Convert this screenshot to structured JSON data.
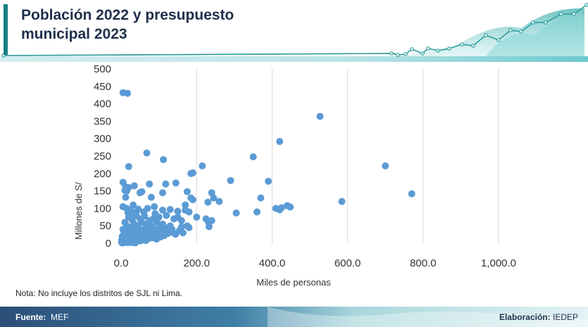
{
  "header": {
    "title_line1": "Población 2022 y presupuesto",
    "title_line2": "municipal 2023"
  },
  "note": "Nota: No incluye los distritos de SJL ni Lima.",
  "footer": {
    "source_label": "Fuente:",
    "source_value": "MEF",
    "elaboration_label": "Elaboración:",
    "elaboration_value": "IEDEP"
  },
  "colors": {
    "accent": "#1a7f86",
    "points": "#5b9bd5",
    "title": "#1f2f4b"
  },
  "chart_data": {
    "type": "scatter",
    "xlabel": "Miles de personas",
    "ylabel": "Millones de S/",
    "xlim": [
      0,
      1000
    ],
    "ylim": [
      0,
      500
    ],
    "xticks": [
      0,
      200,
      400,
      600,
      800,
      1000
    ],
    "xtick_labels": [
      "0.0",
      "200.0",
      "400.0",
      "600.0",
      "800.0",
      "1,000.0"
    ],
    "yticks": [
      0,
      50,
      100,
      150,
      200,
      250,
      300,
      350,
      400,
      450,
      500
    ],
    "ytick_labels": [
      "0",
      "50",
      "100",
      "150",
      "200",
      "250",
      "300",
      "350",
      "400",
      "450",
      "500"
    ],
    "grid": "vertical",
    "points": [
      [
        5,
        432
      ],
      [
        17,
        430
      ],
      [
        527,
        364
      ],
      [
        420,
        292
      ],
      [
        350,
        248
      ],
      [
        68,
        259
      ],
      [
        112,
        240
      ],
      [
        700,
        222
      ],
      [
        20,
        220
      ],
      [
        215,
        222
      ],
      [
        185,
        200
      ],
      [
        190,
        202
      ],
      [
        5,
        175
      ],
      [
        12,
        162
      ],
      [
        20,
        160
      ],
      [
        10,
        152
      ],
      [
        15,
        150
      ],
      [
        35,
        165
      ],
      [
        75,
        170
      ],
      [
        118,
        170
      ],
      [
        145,
        173
      ],
      [
        290,
        180
      ],
      [
        390,
        178
      ],
      [
        770,
        142
      ],
      [
        50,
        145
      ],
      [
        55,
        148
      ],
      [
        110,
        145
      ],
      [
        175,
        148
      ],
      [
        240,
        145
      ],
      [
        370,
        130
      ],
      [
        245,
        130
      ],
      [
        12,
        132
      ],
      [
        80,
        132
      ],
      [
        185,
        130
      ],
      [
        190,
        125
      ],
      [
        170,
        110
      ],
      [
        230,
        118
      ],
      [
        260,
        120
      ],
      [
        585,
        120
      ],
      [
        440,
        108
      ],
      [
        448,
        104
      ],
      [
        410,
        100
      ],
      [
        420,
        96
      ],
      [
        425,
        102
      ],
      [
        360,
        90
      ],
      [
        305,
        87
      ],
      [
        5,
        105
      ],
      [
        15,
        100
      ],
      [
        25,
        95
      ],
      [
        32,
        110
      ],
      [
        45,
        98
      ],
      [
        70,
        100
      ],
      [
        88,
        105
      ],
      [
        110,
        95
      ],
      [
        130,
        97
      ],
      [
        150,
        92
      ],
      [
        170,
        95
      ],
      [
        180,
        90
      ],
      [
        200,
        75
      ],
      [
        225,
        70
      ],
      [
        232,
        60
      ],
      [
        240,
        65
      ],
      [
        233,
        48
      ],
      [
        175,
        50
      ],
      [
        180,
        45
      ],
      [
        160,
        47
      ],
      [
        60,
        90
      ],
      [
        90,
        85
      ],
      [
        120,
        80
      ],
      [
        140,
        70
      ],
      [
        75,
        65
      ],
      [
        85,
        70
      ],
      [
        95,
        60
      ],
      [
        100,
        75
      ],
      [
        110,
        55
      ],
      [
        130,
        50
      ],
      [
        150,
        75
      ],
      [
        160,
        65
      ],
      [
        40,
        80
      ],
      [
        50,
        70
      ],
      [
        20,
        75
      ],
      [
        30,
        65
      ],
      [
        55,
        60
      ],
      [
        65,
        55
      ],
      [
        70,
        45
      ],
      [
        80,
        50
      ],
      [
        90,
        40
      ],
      [
        100,
        42
      ],
      [
        115,
        38
      ],
      [
        125,
        45
      ],
      [
        135,
        40
      ],
      [
        45,
        50
      ],
      [
        35,
        55
      ],
      [
        25,
        45
      ],
      [
        15,
        50
      ],
      [
        10,
        60
      ],
      [
        5,
        40
      ],
      [
        8,
        30
      ],
      [
        12,
        25
      ],
      [
        18,
        35
      ],
      [
        22,
        28
      ],
      [
        28,
        38
      ],
      [
        33,
        30
      ],
      [
        38,
        42
      ],
      [
        42,
        25
      ],
      [
        48,
        35
      ],
      [
        52,
        28
      ],
      [
        58,
        38
      ],
      [
        62,
        32
      ],
      [
        68,
        28
      ],
      [
        72,
        35
      ],
      [
        78,
        30
      ],
      [
        82,
        38
      ],
      [
        88,
        28
      ],
      [
        92,
        32
      ],
      [
        98,
        25
      ],
      [
        105,
        30
      ],
      [
        3,
        20
      ],
      [
        6,
        15
      ],
      [
        9,
        22
      ],
      [
        14,
        18
      ],
      [
        19,
        12
      ],
      [
        24,
        20
      ],
      [
        29,
        15
      ],
      [
        34,
        22
      ],
      [
        39,
        18
      ],
      [
        44,
        14
      ],
      [
        49,
        20
      ],
      [
        54,
        16
      ],
      [
        59,
        22
      ],
      [
        64,
        18
      ],
      [
        2,
        10
      ],
      [
        4,
        6
      ],
      [
        7,
        12
      ],
      [
        11,
        8
      ],
      [
        16,
        5
      ],
      [
        21,
        10
      ],
      [
        26,
        7
      ],
      [
        31,
        12
      ],
      [
        36,
        8
      ],
      [
        41,
        5
      ],
      [
        46,
        10
      ],
      [
        51,
        7
      ],
      [
        56,
        12
      ],
      [
        1,
        3
      ],
      [
        3,
        1
      ],
      [
        5,
        4
      ],
      [
        8,
        2
      ],
      [
        13,
        3
      ],
      [
        18,
        2
      ],
      [
        23,
        4
      ],
      [
        27,
        2
      ],
      [
        32,
        3
      ],
      [
        37,
        1
      ],
      [
        60,
        10
      ],
      [
        66,
        8
      ],
      [
        74,
        14
      ],
      [
        84,
        16
      ],
      [
        94,
        12
      ],
      [
        104,
        18
      ],
      [
        114,
        22
      ],
      [
        124,
        28
      ],
      [
        134,
        32
      ],
      [
        144,
        26
      ],
      [
        154,
        36
      ],
      [
        164,
        30
      ],
      [
        30,
        85
      ],
      [
        40,
        90
      ],
      [
        18,
        88
      ],
      [
        62,
        78
      ]
    ]
  }
}
